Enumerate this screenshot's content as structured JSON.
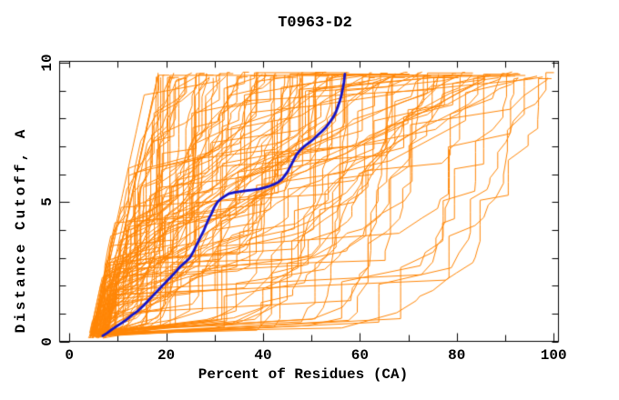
{
  "chart_data": {
    "type": "line",
    "title": "T0963-D2",
    "xlabel": "Percent of Residues (CA)",
    "ylabel": "Distance Cutoff, A",
    "xlim": [
      -2,
      101
    ],
    "ylim": [
      0,
      10.05
    ],
    "x_major_ticks": [
      0,
      20,
      40,
      60,
      80,
      100
    ],
    "x_tick_labels": [
      "0",
      "20",
      "40",
      "60",
      "80",
      "100"
    ],
    "x_minor_step": 10,
    "y_major_ticks": [
      0,
      5,
      10
    ],
    "y_tick_labels": [
      "0",
      "5",
      "10"
    ],
    "y_minor_step": 1,
    "grid": false,
    "legend": null,
    "colors": {
      "background": "#ffffff",
      "axis": "#000000",
      "ensemble": "#FF8505",
      "highlight": "#1414C8"
    },
    "series": [
      {
        "name": "prediction-ensemble",
        "kind": "ensemble",
        "color": "#FF8505",
        "line_width": 1,
        "count": 120,
        "seed": 20963,
        "x_start_range": [
          4,
          8
        ],
        "y_start_range": [
          0.12,
          0.38
        ],
        "x_top_range": [
          17,
          100
        ],
        "y_top": 9.55,
        "style": "staircase"
      },
      {
        "name": "highlighted-model",
        "kind": "points",
        "color": "#1414C8",
        "line_width": 2.8,
        "points": [
          [
            6.9,
            0.2
          ],
          [
            7.8,
            0.3
          ],
          [
            9.0,
            0.45
          ],
          [
            10.3,
            0.6
          ],
          [
            11.6,
            0.75
          ],
          [
            13.0,
            0.95
          ],
          [
            14.2,
            1.1
          ],
          [
            15.4,
            1.3
          ],
          [
            16.5,
            1.5
          ],
          [
            17.6,
            1.7
          ],
          [
            18.7,
            1.9
          ],
          [
            19.8,
            2.1
          ],
          [
            20.9,
            2.3
          ],
          [
            22.0,
            2.5
          ],
          [
            23.0,
            2.7
          ],
          [
            24.0,
            2.85
          ],
          [
            24.9,
            3.0
          ],
          [
            25.7,
            3.25
          ],
          [
            26.4,
            3.5
          ],
          [
            27.1,
            3.75
          ],
          [
            27.7,
            3.95
          ],
          [
            28.3,
            4.2
          ],
          [
            28.8,
            4.4
          ],
          [
            29.4,
            4.6
          ],
          [
            29.9,
            4.8
          ],
          [
            30.6,
            5.0
          ],
          [
            31.2,
            5.1
          ],
          [
            32.0,
            5.2
          ],
          [
            32.9,
            5.3
          ],
          [
            34.1,
            5.35
          ],
          [
            35.4,
            5.38
          ],
          [
            36.7,
            5.41
          ],
          [
            38.0,
            5.44
          ],
          [
            39.2,
            5.47
          ],
          [
            40.3,
            5.52
          ],
          [
            41.3,
            5.57
          ],
          [
            42.3,
            5.64
          ],
          [
            43.2,
            5.72
          ],
          [
            43.9,
            5.82
          ],
          [
            44.5,
            5.95
          ],
          [
            45.1,
            6.1
          ],
          [
            45.7,
            6.3
          ],
          [
            46.3,
            6.5
          ],
          [
            46.9,
            6.7
          ],
          [
            47.6,
            6.85
          ],
          [
            48.3,
            6.97
          ],
          [
            49.1,
            7.08
          ],
          [
            49.9,
            7.18
          ],
          [
            50.7,
            7.3
          ],
          [
            51.4,
            7.42
          ],
          [
            52.1,
            7.53
          ],
          [
            52.8,
            7.65
          ],
          [
            53.4,
            7.78
          ],
          [
            54.0,
            7.92
          ],
          [
            54.6,
            8.08
          ],
          [
            55.1,
            8.25
          ],
          [
            55.5,
            8.45
          ],
          [
            55.9,
            8.65
          ],
          [
            56.2,
            8.85
          ],
          [
            56.5,
            9.1
          ],
          [
            56.7,
            9.3
          ],
          [
            56.8,
            9.45
          ],
          [
            56.9,
            9.6
          ]
        ]
      }
    ]
  }
}
